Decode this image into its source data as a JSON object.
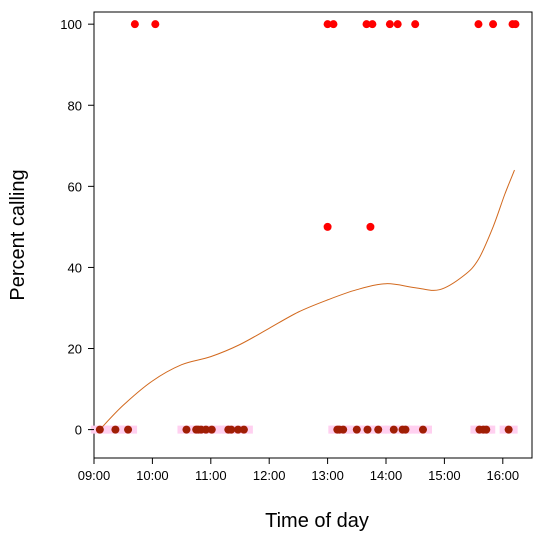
{
  "chart_data": {
    "type": "scatter",
    "xlabel": "Time of day",
    "ylabel": "Percent calling",
    "xlim": [
      540,
      990
    ],
    "ylim": [
      -7,
      103
    ],
    "x_ticks": [
      {
        "value": 540,
        "label": "09:00"
      },
      {
        "value": 600,
        "label": "10:00"
      },
      {
        "value": 660,
        "label": "11:00"
      },
      {
        "value": 720,
        "label": "12:00"
      },
      {
        "value": 780,
        "label": "13:00"
      },
      {
        "value": 840,
        "label": "14:00"
      },
      {
        "value": 900,
        "label": "15:00"
      },
      {
        "value": 960,
        "label": "16:00"
      }
    ],
    "y_ticks": [
      {
        "value": 0,
        "label": "0"
      },
      {
        "value": 20,
        "label": "20"
      },
      {
        "value": 40,
        "label": "40"
      },
      {
        "value": 60,
        "label": "60"
      },
      {
        "value": 80,
        "label": "80"
      },
      {
        "value": 100,
        "label": "100"
      }
    ],
    "grid": false,
    "colors": {
      "points": "#ff0000",
      "smooth": "#d2691e",
      "overlap_band": "#ffd0f0"
    },
    "series": [
      {
        "values": [
          {
            "x": 582,
            "y": 100
          },
          {
            "x": 603,
            "y": 100
          },
          {
            "x": 780,
            "y": 100
          },
          {
            "x": 786,
            "y": 100
          },
          {
            "x": 820,
            "y": 100
          },
          {
            "x": 826,
            "y": 100
          },
          {
            "x": 844,
            "y": 100
          },
          {
            "x": 852,
            "y": 100
          },
          {
            "x": 870,
            "y": 100
          },
          {
            "x": 935,
            "y": 100
          },
          {
            "x": 950,
            "y": 100
          },
          {
            "x": 970,
            "y": 100
          },
          {
            "x": 973,
            "y": 100
          },
          {
            "x": 780,
            "y": 50
          },
          {
            "x": 824,
            "y": 50
          },
          {
            "x": 546,
            "y": 0
          },
          {
            "x": 562,
            "y": 0
          },
          {
            "x": 575,
            "y": 0
          },
          {
            "x": 635,
            "y": 0
          },
          {
            "x": 645,
            "y": 0
          },
          {
            "x": 647,
            "y": 0
          },
          {
            "x": 650,
            "y": 0
          },
          {
            "x": 655,
            "y": 0
          },
          {
            "x": 661,
            "y": 0
          },
          {
            "x": 678,
            "y": 0
          },
          {
            "x": 681,
            "y": 0
          },
          {
            "x": 688,
            "y": 0
          },
          {
            "x": 694,
            "y": 0
          },
          {
            "x": 790,
            "y": 0
          },
          {
            "x": 792,
            "y": 0
          },
          {
            "x": 796,
            "y": 0
          },
          {
            "x": 810,
            "y": 0
          },
          {
            "x": 821,
            "y": 0
          },
          {
            "x": 832,
            "y": 0
          },
          {
            "x": 848,
            "y": 0
          },
          {
            "x": 857,
            "y": 0
          },
          {
            "x": 860,
            "y": 0
          },
          {
            "x": 878,
            "y": 0
          },
          {
            "x": 936,
            "y": 0
          },
          {
            "x": 940,
            "y": 0
          },
          {
            "x": 943,
            "y": 0
          },
          {
            "x": 966,
            "y": 0
          }
        ]
      },
      {
        "type": "line",
        "values": [
          {
            "x": 546,
            "y": 0
          },
          {
            "x": 570,
            "y": 6
          },
          {
            "x": 600,
            "y": 12
          },
          {
            "x": 630,
            "y": 16
          },
          {
            "x": 660,
            "y": 18
          },
          {
            "x": 690,
            "y": 21
          },
          {
            "x": 720,
            "y": 25
          },
          {
            "x": 750,
            "y": 29
          },
          {
            "x": 780,
            "y": 32
          },
          {
            "x": 810,
            "y": 34.5
          },
          {
            "x": 840,
            "y": 36
          },
          {
            "x": 870,
            "y": 35
          },
          {
            "x": 895,
            "y": 34.5
          },
          {
            "x": 920,
            "y": 38
          },
          {
            "x": 935,
            "y": 42
          },
          {
            "x": 950,
            "y": 50
          },
          {
            "x": 962,
            "y": 58
          },
          {
            "x": 972,
            "y": 64
          }
        ]
      }
    ]
  }
}
